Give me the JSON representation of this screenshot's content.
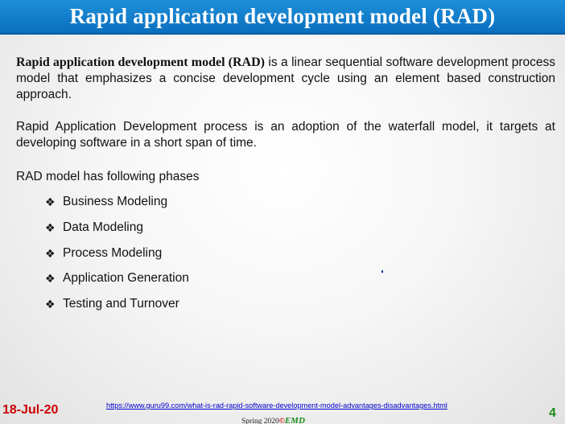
{
  "slide": {
    "title": "Rapid application development model (RAD)",
    "intro_term": "Rapid application development model (RAD)",
    "intro_rest": " is a linear sequential software development process model that emphasizes a concise development cycle using an element based construction approach.",
    "paragraph2": "Rapid Application Development process is an adoption of the waterfall model, it targets at developing software in a short span of time.",
    "phases_intro": "RAD model has following phases",
    "bullet_symbol": "❖",
    "phases": [
      "Business Modeling",
      "Data Modeling",
      "Process Modeling",
      "Application Generation",
      "Testing and Turnover"
    ]
  },
  "footer": {
    "date": "18-Jul-20",
    "link": "https://www.guru99.com/what-is-rad-rapid-software-development-model-advantages-disadvantages.html",
    "page_number": "4",
    "term": "Spring 2020",
    "copyright": "©",
    "author": "EMD"
  },
  "colors": {
    "title_bar": "#0a6fbf",
    "date": "#cc0000",
    "page_number": "#1a8a1a",
    "link": "#0000cc"
  }
}
